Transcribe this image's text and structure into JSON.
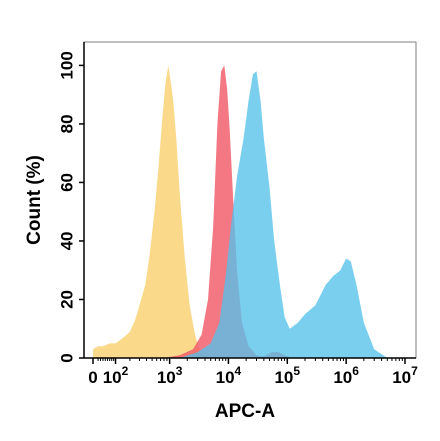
{
  "chart_data": {
    "type": "area",
    "xlabel": "APC-A",
    "ylabel": "Count  (%)",
    "x_scale": "biexponential",
    "xlim": [
      0,
      10000000
    ],
    "ylim": [
      0,
      108
    ],
    "x_ticks": [
      {
        "base": "0",
        "exp": "",
        "value": 0
      },
      {
        "base": "10",
        "exp": "2",
        "value": 100
      },
      {
        "base": "10",
        "exp": "3",
        "value": 1000
      },
      {
        "base": "10",
        "exp": "4",
        "value": 10000
      },
      {
        "base": "10",
        "exp": "5",
        "value": 100000
      },
      {
        "base": "10",
        "exp": "6",
        "value": 1000000
      },
      {
        "base": "10",
        "exp": "7",
        "value": 10000000
      }
    ],
    "y_ticks": [
      "0",
      "20",
      "40",
      "60",
      "80",
      "100"
    ],
    "grid": false,
    "series": [
      {
        "color": "#f9cf69",
        "x": [
          0,
          20,
          40,
          70,
          100,
          150,
          200,
          250,
          300,
          380,
          450,
          550,
          650,
          750,
          850,
          950,
          1050,
          1150,
          1300,
          1500,
          1800,
          2200,
          2700,
          3200,
          4000,
          5000,
          6500
        ],
        "y": [
          3,
          4,
          4,
          5,
          5,
          7,
          9,
          13,
          18,
          25,
          35,
          50,
          66,
          82,
          94,
          100,
          94,
          88,
          75,
          55,
          35,
          18,
          8,
          3,
          1,
          0.5,
          0
        ]
      },
      {
        "color": "#f05a69",
        "x": [
          800,
          1500,
          2500,
          3500,
          4500,
          5500,
          6500,
          7500,
          8500,
          9500,
          10500,
          12000,
          14000,
          17000,
          22000,
          30000,
          40000,
          55000,
          70000,
          90000,
          120000
        ],
        "y": [
          0,
          1,
          3,
          8,
          20,
          45,
          80,
          98,
          100,
          92,
          78,
          55,
          30,
          12,
          4,
          1,
          0.5,
          2,
          2,
          1,
          0
        ]
      },
      {
        "color": "#55c1ea",
        "x": [
          1500,
          3000,
          5000,
          7000,
          9000,
          11000,
          14000,
          18000,
          22000,
          26000,
          30000,
          35000,
          40000,
          50000,
          60000,
          75000,
          90000,
          110000,
          150000,
          200000,
          300000,
          450000,
          600000,
          800000,
          1000000,
          1200000,
          1500000,
          2000000,
          3000000,
          5000000
        ],
        "y": [
          0,
          2,
          5,
          12,
          28,
          45,
          62,
          75,
          88,
          97,
          98,
          88,
          75,
          58,
          40,
          25,
          14,
          10,
          12,
          15,
          18,
          25,
          28,
          30,
          34,
          33,
          25,
          12,
          3,
          0
        ]
      }
    ]
  }
}
